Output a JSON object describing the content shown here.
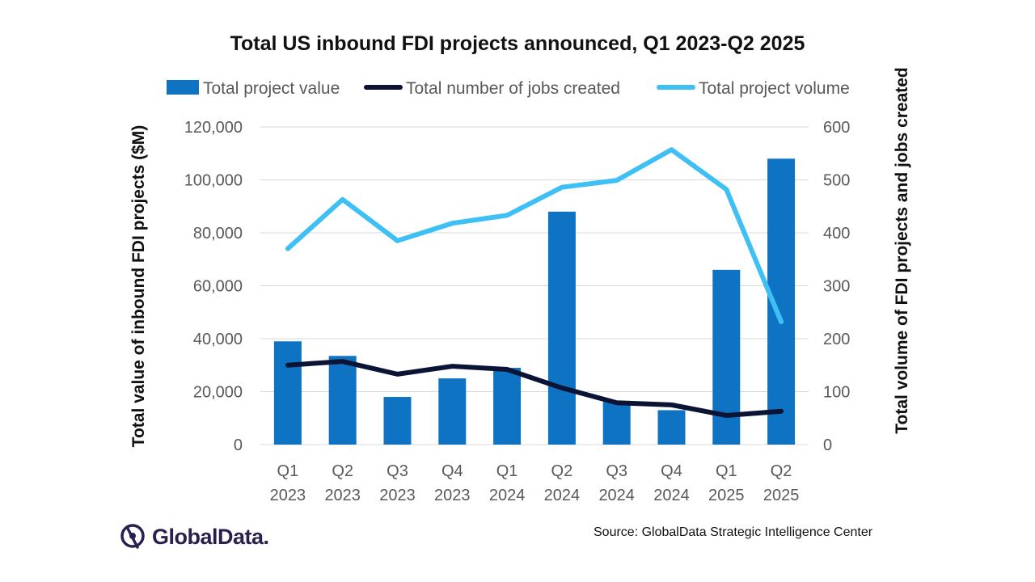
{
  "chart_data": {
    "type": "bar+line",
    "title": "Total US inbound FDI projects announced, Q1 2023-Q2 2025",
    "categories": [
      [
        "Q1",
        "2023"
      ],
      [
        "Q2",
        "2023"
      ],
      [
        "Q3",
        "2023"
      ],
      [
        "Q4",
        "2023"
      ],
      [
        "Q1",
        "2024"
      ],
      [
        "Q2",
        "2024"
      ],
      [
        "Q3",
        "2024"
      ],
      [
        "Q4",
        "2024"
      ],
      [
        "Q1",
        "2025"
      ],
      [
        "Q2",
        "2025"
      ]
    ],
    "ylabel_left": "Total value of inbound FDI projects ($M)",
    "ylabel_right": "Total volume of FDI projects and jobs created",
    "ylim_left": [
      0,
      120000
    ],
    "ylim_right": [
      0,
      600
    ],
    "yticks_left": [
      "0",
      "20,000",
      "40,000",
      "60,000",
      "80,000",
      "100,000",
      "120,000"
    ],
    "yticks_right": [
      "0",
      "100",
      "200",
      "300",
      "400",
      "500",
      "600"
    ],
    "grid": true,
    "legend_position": "top",
    "series": [
      {
        "name": "Total project value",
        "type": "bar",
        "axis": "left",
        "color": "#0f73c3",
        "values": [
          39000,
          33500,
          18000,
          25000,
          29000,
          88000,
          16500,
          13000,
          66000,
          108000
        ]
      },
      {
        "name": "Total number of jobs created",
        "type": "line",
        "axis": "right",
        "color": "#0c1436",
        "values": [
          150,
          157,
          133,
          148,
          142,
          107,
          79,
          75,
          55,
          63
        ]
      },
      {
        "name": "Total project volume",
        "type": "line",
        "axis": "right",
        "color": "#3fc0f5",
        "values": [
          370,
          463,
          385,
          418,
          433,
          486,
          499,
          557,
          482,
          232
        ]
      }
    ]
  },
  "footer": {
    "source": "Source: GlobalData Strategic Intelligence Center",
    "logo_text": "GlobalData."
  }
}
